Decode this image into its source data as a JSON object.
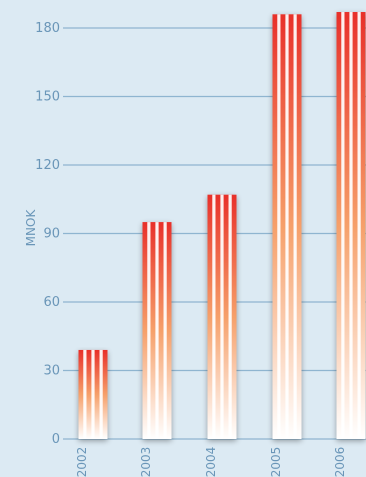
{
  "chart_data": {
    "type": "bar",
    "title": "",
    "xlabel": "",
    "ylabel": "MNOK",
    "ylim": [
      0,
      190
    ],
    "yticks": [
      0,
      30,
      60,
      90,
      120,
      150,
      180
    ],
    "grid": true,
    "categories": [
      "2002",
      "2003",
      "2004",
      "2005",
      "2006"
    ],
    "values": [
      39,
      95,
      107,
      186,
      187
    ],
    "colors": {
      "bar_top": "#e8302a",
      "bar_mid": "#f6a06a",
      "bar_bottom": "#ffffff",
      "stripe": "#ffffff",
      "grid": "#8fb5d0",
      "text": "#6a96b8"
    }
  }
}
